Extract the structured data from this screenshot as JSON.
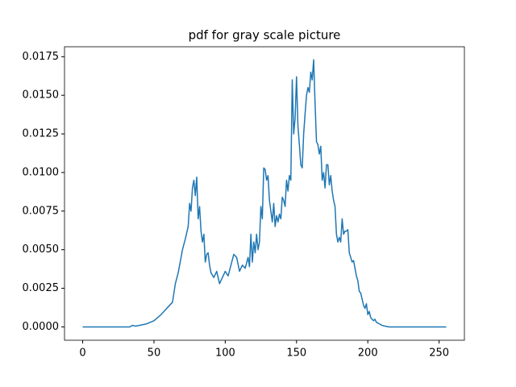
{
  "chart_data": {
    "type": "line",
    "title": "pdf for gray scale picture",
    "x": [
      0,
      33,
      35,
      37,
      40,
      45,
      50,
      55,
      60,
      63,
      65,
      67,
      70,
      72,
      74,
      75,
      76,
      77,
      78,
      79,
      80,
      81,
      82,
      83,
      84,
      85,
      86,
      87,
      88,
      89,
      90,
      92,
      94,
      96,
      98,
      100,
      102,
      104,
      106,
      108,
      110,
      112,
      114,
      116,
      117,
      118,
      119,
      120,
      121,
      122,
      123,
      124,
      125,
      126,
      127,
      128,
      129,
      130,
      131,
      132,
      133,
      134,
      135,
      136,
      137,
      138,
      139,
      140,
      141,
      142,
      143,
      144,
      145,
      146,
      147,
      148,
      149,
      150,
      151,
      152,
      153,
      154,
      155,
      156,
      157,
      158,
      159,
      160,
      161,
      162,
      163,
      164,
      165,
      166,
      167,
      168,
      169,
      170,
      171,
      172,
      173,
      174,
      175,
      176,
      177,
      178,
      179,
      180,
      181,
      182,
      183,
      184,
      185,
      186,
      187,
      188,
      189,
      190,
      191,
      192,
      193,
      194,
      195,
      196,
      197,
      198,
      199,
      200,
      201,
      202,
      203,
      204,
      205,
      206,
      208,
      210,
      212,
      215,
      255
    ],
    "values": [
      0,
      0,
      0.0001,
      5e-05,
      0.0001,
      0.0002,
      0.0004,
      0.0008,
      0.0013,
      0.0016,
      0.0028,
      0.0035,
      0.005,
      0.0057,
      0.0065,
      0.008,
      0.0075,
      0.009,
      0.0095,
      0.0085,
      0.0097,
      0.007,
      0.0078,
      0.0062,
      0.0055,
      0.006,
      0.0042,
      0.0047,
      0.0048,
      0.004,
      0.0035,
      0.0032,
      0.0036,
      0.0028,
      0.0032,
      0.0036,
      0.0033,
      0.004,
      0.0047,
      0.0045,
      0.0036,
      0.004,
      0.0038,
      0.0045,
      0.0039,
      0.006,
      0.0042,
      0.0055,
      0.0048,
      0.006,
      0.005,
      0.0055,
      0.0078,
      0.007,
      0.0103,
      0.0102,
      0.0095,
      0.0098,
      0.0082,
      0.0075,
      0.0068,
      0.008,
      0.0065,
      0.0072,
      0.0068,
      0.0073,
      0.007,
      0.0084,
      0.0082,
      0.0078,
      0.0095,
      0.0088,
      0.0098,
      0.0095,
      0.016,
      0.0125,
      0.0135,
      0.0162,
      0.013,
      0.0118,
      0.0105,
      0.0103,
      0.0125,
      0.0138,
      0.015,
      0.0155,
      0.0152,
      0.0165,
      0.016,
      0.0173,
      0.0145,
      0.012,
      0.0118,
      0.0112,
      0.0117,
      0.0095,
      0.01,
      0.009,
      0.0105,
      0.0105,
      0.0092,
      0.0098,
      0.0088,
      0.0082,
      0.0078,
      0.006,
      0.0055,
      0.0058,
      0.0055,
      0.007,
      0.006,
      0.0062,
      0.0062,
      0.0063,
      0.0048,
      0.0045,
      0.0042,
      0.0043,
      0.0038,
      0.0033,
      0.003,
      0.0023,
      0.0022,
      0.0018,
      0.0014,
      0.0012,
      0.0015,
      0.0008,
      0.001,
      0.0006,
      0.0005,
      0.0004,
      0.0005,
      0.0003,
      0.0002,
      0.0001,
      5e-05,
      0,
      0
    ],
    "color": "#1f77b4",
    "xlim": [
      -12.75,
      267.75
    ],
    "xticks": [
      0,
      50,
      100,
      150,
      200,
      250
    ],
    "ylim": [
      -0.000864,
      0.018144
    ],
    "yticks": [
      {
        "value": 0,
        "label": "0.0000"
      },
      0.0025,
      {
        "value": 0.005,
        "label": "0.0050"
      },
      0.0075,
      {
        "value": 0.01,
        "label": "0.0100"
      },
      0.0125,
      {
        "value": 0.015,
        "label": "0.0150"
      },
      0.0175
    ],
    "grid": false
  }
}
